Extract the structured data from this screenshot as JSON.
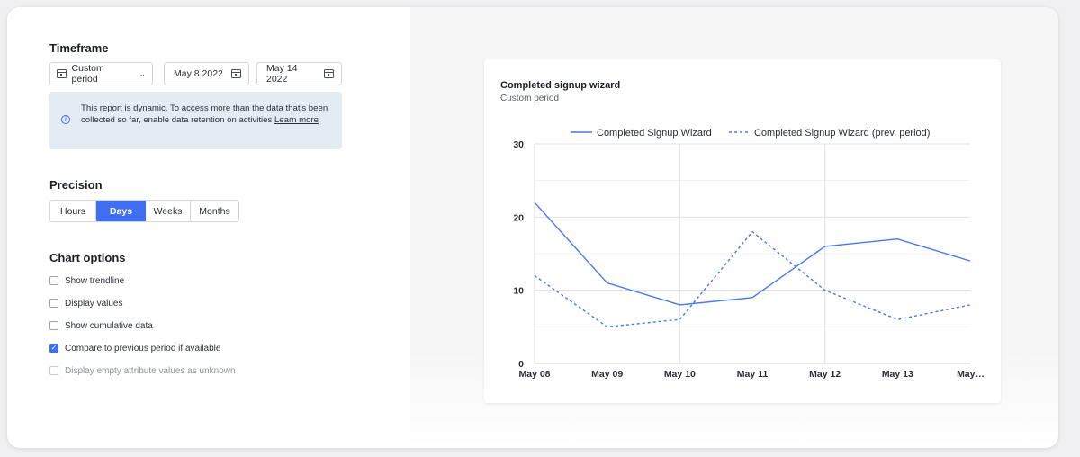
{
  "timeframe": {
    "title": "Timeframe",
    "period_label": "Custom period",
    "start_date": "May 8 2022",
    "end_date": "May 14 2022",
    "info_text": "This report is dynamic. To access more than the data that's been collected so far, enable data retention on activities ",
    "info_link": "Learn more"
  },
  "precision": {
    "title": "Precision",
    "options": [
      "Hours",
      "Days",
      "Weeks",
      "Months"
    ],
    "selected": "Days"
  },
  "chart_options": {
    "title": "Chart options",
    "items": [
      {
        "label": "Show trendline",
        "checked": false,
        "disabled": false
      },
      {
        "label": "Display values",
        "checked": false,
        "disabled": false
      },
      {
        "label": "Show cumulative data",
        "checked": false,
        "disabled": false
      },
      {
        "label": "Compare to previous period if available",
        "checked": true,
        "disabled": false
      },
      {
        "label": "Display empty attribute values as unknown",
        "checked": false,
        "disabled": true
      }
    ]
  },
  "colors": {
    "accent": "#3f6ff0",
    "line": "#4a78e6"
  },
  "chart_data": {
    "type": "line",
    "title": "Completed signup wizard",
    "subtitle": "Custom period",
    "categories": [
      "May 08",
      "May 09",
      "May 10",
      "May 11",
      "May 12",
      "May 13",
      "May…"
    ],
    "series": [
      {
        "name": "Completed Signup Wizard",
        "style": "solid",
        "values": [
          22,
          11,
          8,
          9,
          16,
          17,
          14
        ]
      },
      {
        "name": "Completed Signup Wizard (prev. period)",
        "style": "dashed",
        "values": [
          12,
          5,
          6,
          18,
          10,
          6,
          8
        ]
      }
    ],
    "yticks": [
      0,
      10,
      20,
      30
    ],
    "ylim": [
      0,
      30
    ],
    "legend": "top",
    "grid": true
  }
}
